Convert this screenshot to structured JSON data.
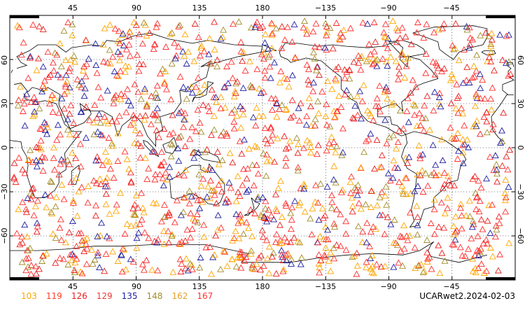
{
  "map": {
    "projection": "equirectangular, centered on 180",
    "gridlines": true,
    "top_ticks": [
      "45",
      "90",
      "135",
      "180",
      "−135",
      "−90",
      "−45"
    ],
    "bottom_ticks": [
      "45",
      "90",
      "135",
      "180",
      "−135",
      "−90",
      "−45"
    ],
    "left_ticks": [
      "60",
      "30",
      "0",
      "−30",
      "−60"
    ],
    "right_ticks": [
      "60",
      "30",
      "0",
      "−30",
      "−60"
    ]
  },
  "legend": {
    "items": [
      {
        "label": "103",
        "color": "#ffa500"
      },
      {
        "label": "119",
        "color": "#ff3c28"
      },
      {
        "label": "126",
        "color": "#e61e1e"
      },
      {
        "label": "129",
        "color": "#f03c3c"
      },
      {
        "label": "135",
        "color": "#1e1ea0"
      },
      {
        "label": "148",
        "color": "#a08c28"
      },
      {
        "label": "162",
        "color": "#e6a028"
      },
      {
        "label": "167",
        "color": "#ff3232"
      }
    ]
  },
  "run_label": "UCARwet2.2024-02-03",
  "colors": {
    "coastline": "#000000",
    "gridline": "#000000",
    "marker_orange": "#ffa500",
    "marker_red": "#ff2d2d",
    "marker_blue": "#1e1ea0",
    "marker_olive": "#a08c28"
  }
}
